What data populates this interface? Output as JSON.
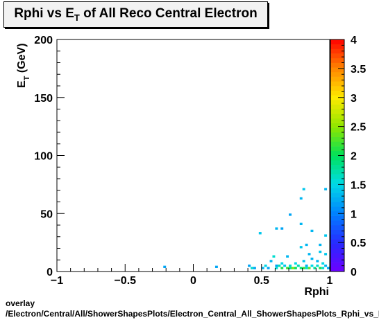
{
  "chart_data": {
    "type": "heatmap",
    "title_parts": [
      "Rphi vs E",
      "T",
      " of All Reco Central Electron"
    ],
    "xlabel": "Rphi",
    "ylabel_parts": [
      "E",
      "T",
      " (GeV)"
    ],
    "xlim": [
      -1,
      1
    ],
    "ylim": [
      0,
      200
    ],
    "x_ticks": [
      "−1",
      "−0.5",
      "0",
      "0.5",
      "1"
    ],
    "y_ticks": [
      "0",
      "50",
      "100",
      "150",
      "200"
    ],
    "z_range": [
      0,
      4
    ],
    "z_ticks": [
      "0",
      "0.5",
      "1",
      "1.5",
      "2",
      "2.5",
      "3",
      "3.5",
      "4"
    ],
    "bin_width": [
      0.02,
      2
    ],
    "cells": [
      [
        -0.21,
        4,
        1.2
      ],
      [
        0.17,
        4,
        1.2
      ],
      [
        0.41,
        5,
        1.2
      ],
      [
        0.43,
        3,
        1.6
      ],
      [
        0.45,
        3,
        1.2
      ],
      [
        0.51,
        3,
        1.3
      ],
      [
        0.53,
        5,
        1.5
      ],
      [
        0.55,
        3,
        1.2
      ],
      [
        0.57,
        9,
        1.3
      ],
      [
        0.59,
        13,
        1.6
      ],
      [
        0.61,
        5,
        1.2
      ],
      [
        0.61,
        3,
        1.6
      ],
      [
        0.63,
        5,
        1.7
      ],
      [
        0.65,
        3,
        2.1
      ],
      [
        0.65,
        7,
        1.5
      ],
      [
        0.67,
        5,
        1.4
      ],
      [
        0.69,
        3,
        2.2
      ],
      [
        0.69,
        13,
        1.3
      ],
      [
        0.71,
        5,
        1.6
      ],
      [
        0.71,
        3,
        1.8
      ],
      [
        0.73,
        3,
        2.4
      ],
      [
        0.75,
        3,
        2.0
      ],
      [
        0.75,
        7,
        1.5
      ],
      [
        0.77,
        5,
        1.7
      ],
      [
        0.79,
        3,
        1.9
      ],
      [
        0.81,
        3,
        2.2
      ],
      [
        0.81,
        9,
        1.4
      ],
      [
        0.83,
        3,
        1.6
      ],
      [
        0.83,
        5,
        1.3
      ],
      [
        0.85,
        3,
        2.3
      ],
      [
        0.85,
        15,
        1.3
      ],
      [
        0.87,
        5,
        1.5
      ],
      [
        0.87,
        11,
        1.3
      ],
      [
        0.89,
        3,
        1.8
      ],
      [
        0.91,
        5,
        1.6
      ],
      [
        0.91,
        9,
        1.3
      ],
      [
        0.93,
        3,
        2.1
      ],
      [
        0.93,
        17,
        1.4
      ],
      [
        0.95,
        7,
        1.5
      ],
      [
        0.95,
        3,
        1.6
      ],
      [
        0.97,
        5,
        1.3
      ],
      [
        0.97,
        15,
        1.4
      ],
      [
        0.99,
        3,
        1.2
      ],
      [
        0.79,
        21,
        1.4
      ],
      [
        0.83,
        23,
        1.3
      ],
      [
        0.93,
        23,
        1.3
      ],
      [
        0.97,
        31,
        1.4
      ],
      [
        0.87,
        35,
        1.3
      ],
      [
        0.49,
        33,
        1.4
      ],
      [
        0.65,
        37,
        1.2
      ],
      [
        0.79,
        41,
        1.3
      ],
      [
        0.61,
        37,
        1.3
      ],
      [
        0.71,
        49,
        1.2
      ],
      [
        0.79,
        63,
        1.3
      ],
      [
        0.81,
        71,
        1.4
      ],
      [
        0.97,
        71,
        1.3
      ]
    ]
  },
  "footer": {
    "line1": "overlay",
    "line2": "/Electron/Central/All/ShowerShapesPlots/Electron_Central_All_ShowerShapesPlots_Rphi_vs_Et"
  }
}
